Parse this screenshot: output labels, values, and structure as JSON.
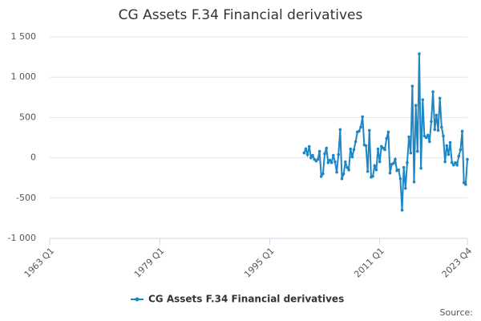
{
  "chart_data": {
    "type": "line",
    "title": "CG Assets F.34 Financial derivatives",
    "source": "Source:",
    "categories": [
      "1963 Q1",
      null,
      null,
      null,
      null,
      null,
      null,
      null,
      null,
      null,
      null,
      null,
      null,
      null,
      null,
      null,
      null,
      null,
      null,
      null,
      null,
      null,
      null,
      null,
      null,
      null,
      null,
      null,
      null,
      null,
      null,
      null,
      null,
      null,
      null,
      null,
      null,
      null,
      null,
      null,
      null,
      null,
      null,
      null,
      null,
      null,
      null,
      null,
      null,
      null,
      null,
      null,
      null,
      null,
      null,
      null,
      null,
      null,
      null,
      null,
      null,
      null,
      null,
      null,
      "1979 Q1",
      null,
      null,
      null,
      null,
      null,
      null,
      null,
      null,
      null,
      null,
      null,
      null,
      null,
      null,
      null,
      null,
      null,
      null,
      null,
      null,
      null,
      null,
      null,
      null,
      null,
      null,
      null,
      null,
      null,
      null,
      null,
      null,
      null,
      null,
      null,
      null,
      null,
      null,
      null,
      null,
      null,
      null,
      null,
      null,
      null,
      null,
      null,
      null,
      null,
      null,
      null,
      null,
      null,
      null,
      null,
      null,
      null,
      null,
      null,
      null,
      null,
      null,
      null,
      "1995 Q1",
      null,
      null,
      null,
      null,
      null,
      null,
      null,
      null,
      null,
      null,
      null,
      null,
      null,
      null,
      null,
      null,
      null,
      null,
      null,
      null,
      null,
      null,
      null,
      null,
      null,
      null,
      null,
      null,
      null,
      null,
      null,
      null,
      null,
      null,
      null,
      null,
      null,
      null,
      null,
      null,
      null,
      null,
      null,
      null,
      null,
      null,
      null,
      null,
      null,
      null,
      null,
      null,
      null,
      null,
      null,
      null,
      null,
      null,
      null,
      null,
      null,
      null,
      null,
      "2011 Q1",
      null,
      null,
      null,
      null,
      null,
      null,
      null,
      null,
      null,
      null,
      null,
      null,
      null,
      null,
      null,
      null,
      null,
      null,
      null,
      null,
      null,
      null,
      null,
      null,
      null,
      null,
      null,
      null,
      null,
      null,
      null,
      null,
      null,
      null,
      null,
      null,
      null,
      null,
      null,
      null,
      null,
      null,
      null,
      null,
      null,
      null,
      null,
      null,
      null,
      null,
      "2023 Q4"
    ],
    "series": [
      {
        "name": "CG Assets F.34 Financial derivatives",
        "color": "#1f86c4",
        "values": [
          null,
          null,
          null,
          null,
          null,
          null,
          null,
          null,
          null,
          null,
          null,
          null,
          null,
          null,
          null,
          null,
          null,
          null,
          null,
          null,
          null,
          null,
          null,
          null,
          null,
          null,
          null,
          null,
          null,
          null,
          null,
          null,
          null,
          null,
          null,
          null,
          null,
          null,
          null,
          null,
          null,
          null,
          null,
          null,
          null,
          null,
          null,
          null,
          null,
          null,
          null,
          null,
          null,
          null,
          null,
          null,
          null,
          null,
          null,
          null,
          null,
          null,
          null,
          null,
          null,
          null,
          null,
          null,
          null,
          null,
          null,
          null,
          null,
          null,
          null,
          null,
          null,
          null,
          null,
          null,
          null,
          null,
          null,
          null,
          null,
          null,
          null,
          null,
          null,
          null,
          null,
          null,
          null,
          null,
          null,
          null,
          null,
          null,
          null,
          null,
          null,
          null,
          null,
          null,
          null,
          null,
          null,
          null,
          null,
          null,
          null,
          null,
          null,
          null,
          null,
          null,
          null,
          null,
          null,
          null,
          null,
          null,
          null,
          null,
          null,
          null,
          null,
          null,
          null,
          null,
          null,
          null,
          null,
          null,
          null,
          null,
          null,
          null,
          null,
          null,
          null,
          null,
          null,
          null,
          null,
          null,
          null,
          null,
          60,
          110,
          40,
          140,
          0,
          30,
          -20,
          -40,
          -20,
          80,
          -230,
          -200,
          50,
          120,
          -60,
          -30,
          -60,
          30,
          -50,
          -180,
          40,
          350,
          -260,
          -200,
          -50,
          -120,
          -150,
          110,
          10,
          100,
          200,
          320,
          330,
          380,
          510,
          160,
          150,
          -170,
          340,
          -240,
          -230,
          -100,
          -150,
          110,
          -50,
          140,
          120,
          100,
          240,
          320,
          -190,
          -80,
          -70,
          -20,
          -160,
          -150,
          -260,
          -650,
          -120,
          -380,
          -60,
          260,
          60,
          890,
          -300,
          650,
          80,
          1290,
          -130,
          720,
          270,
          250,
          280,
          200,
          450,
          820,
          350,
          530,
          340,
          740,
          380,
          270,
          -50,
          150,
          40,
          190,
          -60,
          -90,
          -60,
          -90,
          20,
          100,
          330,
          -310,
          -330,
          -20
        ]
      }
    ],
    "ylim": [
      -1000,
      1500
    ],
    "yticks": [
      {
        "value": -1000,
        "label": "-1 000"
      },
      -500,
      0,
      500,
      {
        "value": 1000,
        "label": "1 000"
      },
      {
        "value": 1500,
        "label": "1 500"
      }
    ],
    "grid": true
  }
}
